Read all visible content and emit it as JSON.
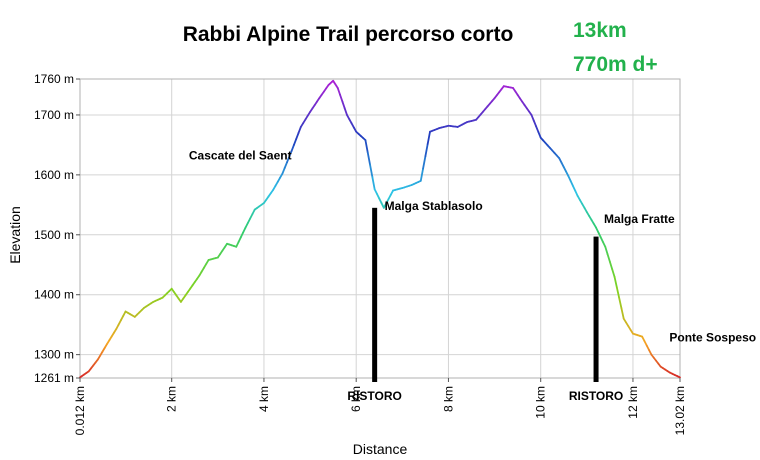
{
  "chart_data": {
    "type": "line",
    "title": "Rabbi Alpine Trail percorso corto",
    "stats": [
      "13km",
      "770m d+"
    ],
    "xlabel": "Distance",
    "ylabel": "Elevation",
    "xlim": [
      0.012,
      13.02
    ],
    "ylim": [
      1261,
      1760
    ],
    "grid": true,
    "yticks": [
      {
        "value": 1760,
        "label": "1760 m"
      },
      {
        "value": 1700,
        "label": "1700 m"
      },
      {
        "value": 1600,
        "label": "1600 m"
      },
      {
        "value": 1500,
        "label": "1500 m"
      },
      {
        "value": 1400,
        "label": "1400 m"
      },
      {
        "value": 1300,
        "label": "1300 m"
      },
      {
        "value": 1261,
        "label": "1261 m"
      }
    ],
    "xticks": [
      {
        "value": 0.012,
        "label": "0.012 km"
      },
      {
        "value": 2,
        "label": "2 km"
      },
      {
        "value": 4,
        "label": "4 km"
      },
      {
        "value": 6,
        "label": "6 km"
      },
      {
        "value": 8,
        "label": "8 km"
      },
      {
        "value": 10,
        "label": "10 km"
      },
      {
        "value": 12,
        "label": "12 km"
      },
      {
        "value": 13.02,
        "label": "13.02 km"
      }
    ],
    "series": [
      {
        "x": [
          0.012,
          0.2,
          0.4,
          0.6,
          0.8,
          1.0,
          1.2,
          1.4,
          1.6,
          1.8,
          2.0,
          2.2,
          2.4,
          2.6,
          2.8,
          3.0,
          3.2,
          3.4,
          3.6,
          3.8,
          4.0,
          4.2,
          4.4,
          4.6,
          4.8,
          5.0,
          5.2,
          5.4,
          5.5,
          5.6,
          5.8,
          6.0,
          6.2,
          6.4,
          6.6,
          6.8,
          7.0,
          7.2,
          7.4,
          7.6,
          7.8,
          8.0,
          8.2,
          8.4,
          8.6,
          8.8,
          9.0,
          9.2,
          9.4,
          9.6,
          9.8,
          10.0,
          10.2,
          10.4,
          10.6,
          10.8,
          11.0,
          11.2,
          11.4,
          11.6,
          11.8,
          12.0,
          12.2,
          12.4,
          12.6,
          12.8,
          13.02
        ],
        "y": [
          1262,
          1272,
          1292,
          1318,
          1343,
          1372,
          1363,
          1378,
          1388,
          1395,
          1410,
          1388,
          1410,
          1432,
          1458,
          1462,
          1485,
          1480,
          1512,
          1542,
          1553,
          1575,
          1602,
          1640,
          1680,
          1705,
          1728,
          1750,
          1757,
          1745,
          1700,
          1672,
          1658,
          1576,
          1545,
          1574,
          1578,
          1583,
          1590,
          1672,
          1678,
          1682,
          1680,
          1688,
          1692,
          1710,
          1728,
          1748,
          1745,
          1722,
          1700,
          1662,
          1645,
          1628,
          1598,
          1565,
          1538,
          1512,
          1480,
          1430,
          1360,
          1335,
          1330,
          1300,
          1280,
          1270,
          1262
        ]
      }
    ],
    "annotations": [
      {
        "text": "Cascate del Saent",
        "x": 4.6,
        "y": 1617
      },
      {
        "text": "Malga Stablasolo",
        "x": 6.4,
        "y": 1545
      },
      {
        "text": "Malga Fratte",
        "x": 11.2,
        "y": 1505
      },
      {
        "text": "Ponte Sospeso",
        "x": 12.4,
        "y": 1330
      }
    ],
    "markers": [
      {
        "label": "RISTORO",
        "x": 6.4,
        "y": 1545
      },
      {
        "label": "RISTORO",
        "x": 11.2,
        "y": 1497
      }
    ],
    "colors": {
      "stats": "#22b14c",
      "marker": "#000000",
      "gradient_low": "#d62728",
      "gradient_mid_low": "#7fd321",
      "gradient_mid": "#2ec4e6",
      "gradient_high": "#1f3fbf",
      "gradient_top": "#b21fd6"
    }
  }
}
